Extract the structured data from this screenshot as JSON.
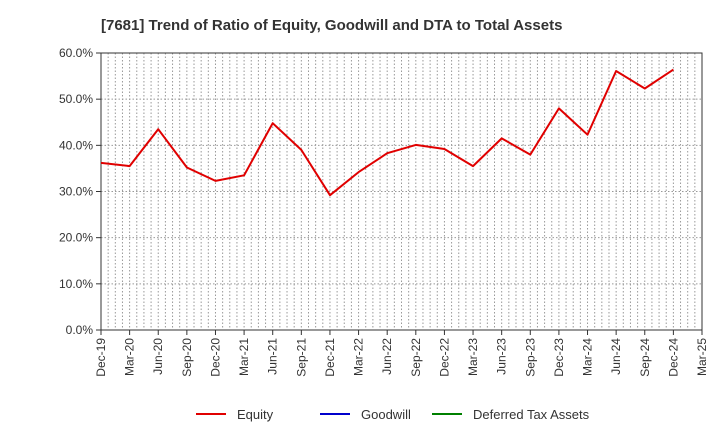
{
  "chart_data": {
    "type": "line",
    "title": "[7681]  Trend of Ratio of Equity, Goodwill and DTA to Total Assets",
    "x_ticks": [
      "Dec-19",
      "Mar-20",
      "Jun-20",
      "Sep-20",
      "Dec-20",
      "Mar-21",
      "Jun-21",
      "Sep-21",
      "Dec-21",
      "Mar-22",
      "Jun-22",
      "Sep-22",
      "Dec-22",
      "Mar-23",
      "Jun-23",
      "Sep-23",
      "Dec-23",
      "Mar-24",
      "Jun-24",
      "Sep-24",
      "Dec-24",
      "Mar-25"
    ],
    "y_ticks": [
      "0.0%",
      "10.0%",
      "20.0%",
      "30.0%",
      "40.0%",
      "50.0%",
      "60.0%"
    ],
    "ylim": [
      0,
      60
    ],
    "grid": true,
    "legend_position": "bottom",
    "series": [
      {
        "name": "Equity",
        "color": "#e00000",
        "x": [
          "Dec-19",
          "Mar-20",
          "Jun-20",
          "Sep-20",
          "Dec-20",
          "Mar-21",
          "Jun-21",
          "Sep-21",
          "Dec-21",
          "Mar-22",
          "Jun-22",
          "Sep-22",
          "Dec-22",
          "Mar-23",
          "Jun-23",
          "Sep-23",
          "Dec-23",
          "Mar-24",
          "Jun-24",
          "Sep-24",
          "Dec-24"
        ],
        "values": [
          36.2,
          35.5,
          43.5,
          35.2,
          32.3,
          33.5,
          44.8,
          39.0,
          29.2,
          34.2,
          38.3,
          40.1,
          39.2,
          35.5,
          41.5,
          38.0,
          48.0,
          42.3,
          56.1,
          52.3,
          56.4
        ]
      },
      {
        "name": "Goodwill",
        "color": "#0000cc",
        "x": [],
        "values": []
      },
      {
        "name": "Deferred Tax Assets",
        "color": "#008000",
        "x": [],
        "values": []
      }
    ]
  }
}
